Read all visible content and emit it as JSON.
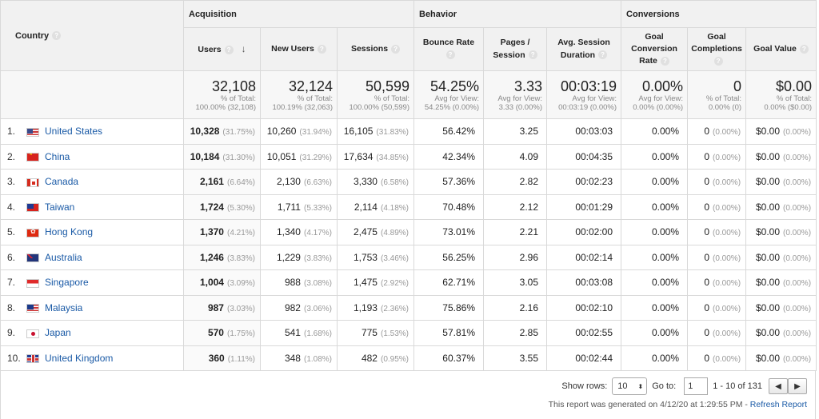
{
  "headers": {
    "country": "Country",
    "acquisition": "Acquisition",
    "behavior": "Behavior",
    "conversions": "Conversions",
    "users": "Users",
    "new_users": "New Users",
    "sessions": "Sessions",
    "bounce_rate": "Bounce Rate",
    "pages_l1": "Pages /",
    "pages_l2": "Session",
    "avg_l1": "Avg. Session",
    "avg_l2": "Duration",
    "gcr_l1": "Goal",
    "gcr_l2": "Conversion",
    "gcr_l3": "Rate",
    "gc_l1": "Goal",
    "gc_l2": "Completions",
    "goal_value": "Goal Value",
    "help_glyph": "?",
    "sort_glyph": "↓"
  },
  "totals": {
    "users": {
      "big": "32,108",
      "s1": "% of Total:",
      "s2": "100.00% (32,108)"
    },
    "new_users": {
      "big": "32,124",
      "s1": "% of Total:",
      "s2": "100.19% (32,063)"
    },
    "sessions": {
      "big": "50,599",
      "s1": "% of Total:",
      "s2": "100.00% (50,599)"
    },
    "bounce_rate": {
      "big": "54.25%",
      "s1": "Avg for View:",
      "s2": "54.25% (0.00%)"
    },
    "pages": {
      "big": "3.33",
      "s1": "Avg for View:",
      "s2": "3.33 (0.00%)"
    },
    "duration": {
      "big": "00:03:19",
      "s1": "Avg for View:",
      "s2": "00:03:19 (0.00%)"
    },
    "gcr": {
      "big": "0.00%",
      "s1": "Avg for View:",
      "s2": "0.00% (0.00%)"
    },
    "gc": {
      "big": "0",
      "s1": "% of Total:",
      "s2": "0.00% (0)"
    },
    "gv": {
      "big": "$0.00",
      "s1": "% of Total:",
      "s2": "0.00% ($0.00)"
    }
  },
  "rows": [
    {
      "n": "1.",
      "country": "United States",
      "users": "10,328",
      "users_p": "(31.75%)",
      "new": "10,260",
      "new_p": "(31.94%)",
      "sess": "16,105",
      "sess_p": "(31.83%)",
      "br": "56.42%",
      "pps": "3.25",
      "dur": "00:03:03",
      "gcr": "0.00%",
      "gc": "0",
      "gc_p": "(0.00%)",
      "gv": "$0.00",
      "gv_p": "(0.00%)"
    },
    {
      "n": "2.",
      "country": "China",
      "users": "10,184",
      "users_p": "(31.30%)",
      "new": "10,051",
      "new_p": "(31.29%)",
      "sess": "17,634",
      "sess_p": "(34.85%)",
      "br": "42.34%",
      "pps": "4.09",
      "dur": "00:04:35",
      "gcr": "0.00%",
      "gc": "0",
      "gc_p": "(0.00%)",
      "gv": "$0.00",
      "gv_p": "(0.00%)"
    },
    {
      "n": "3.",
      "country": "Canada",
      "users": "2,161",
      "users_p": "(6.64%)",
      "new": "2,130",
      "new_p": "(6.63%)",
      "sess": "3,330",
      "sess_p": "(6.58%)",
      "br": "57.36%",
      "pps": "2.82",
      "dur": "00:02:23",
      "gcr": "0.00%",
      "gc": "0",
      "gc_p": "(0.00%)",
      "gv": "$0.00",
      "gv_p": "(0.00%)"
    },
    {
      "n": "4.",
      "country": "Taiwan",
      "users": "1,724",
      "users_p": "(5.30%)",
      "new": "1,711",
      "new_p": "(5.33%)",
      "sess": "2,114",
      "sess_p": "(4.18%)",
      "br": "70.48%",
      "pps": "2.12",
      "dur": "00:01:29",
      "gcr": "0.00%",
      "gc": "0",
      "gc_p": "(0.00%)",
      "gv": "$0.00",
      "gv_p": "(0.00%)"
    },
    {
      "n": "5.",
      "country": "Hong Kong",
      "users": "1,370",
      "users_p": "(4.21%)",
      "new": "1,340",
      "new_p": "(4.17%)",
      "sess": "2,475",
      "sess_p": "(4.89%)",
      "br": "73.01%",
      "pps": "2.21",
      "dur": "00:02:00",
      "gcr": "0.00%",
      "gc": "0",
      "gc_p": "(0.00%)",
      "gv": "$0.00",
      "gv_p": "(0.00%)"
    },
    {
      "n": "6.",
      "country": "Australia",
      "users": "1,246",
      "users_p": "(3.83%)",
      "new": "1,229",
      "new_p": "(3.83%)",
      "sess": "1,753",
      "sess_p": "(3.46%)",
      "br": "56.25%",
      "pps": "2.96",
      "dur": "00:02:14",
      "gcr": "0.00%",
      "gc": "0",
      "gc_p": "(0.00%)",
      "gv": "$0.00",
      "gv_p": "(0.00%)"
    },
    {
      "n": "7.",
      "country": "Singapore",
      "users": "1,004",
      "users_p": "(3.09%)",
      "new": "988",
      "new_p": "(3.08%)",
      "sess": "1,475",
      "sess_p": "(2.92%)",
      "br": "62.71%",
      "pps": "3.05",
      "dur": "00:03:08",
      "gcr": "0.00%",
      "gc": "0",
      "gc_p": "(0.00%)",
      "gv": "$0.00",
      "gv_p": "(0.00%)"
    },
    {
      "n": "8.",
      "country": "Malaysia",
      "users": "987",
      "users_p": "(3.03%)",
      "new": "982",
      "new_p": "(3.06%)",
      "sess": "1,193",
      "sess_p": "(2.36%)",
      "br": "75.86%",
      "pps": "2.16",
      "dur": "00:02:10",
      "gcr": "0.00%",
      "gc": "0",
      "gc_p": "(0.00%)",
      "gv": "$0.00",
      "gv_p": "(0.00%)"
    },
    {
      "n": "9.",
      "country": "Japan",
      "users": "570",
      "users_p": "(1.75%)",
      "new": "541",
      "new_p": "(1.68%)",
      "sess": "775",
      "sess_p": "(1.53%)",
      "br": "57.81%",
      "pps": "2.85",
      "dur": "00:02:55",
      "gcr": "0.00%",
      "gc": "0",
      "gc_p": "(0.00%)",
      "gv": "$0.00",
      "gv_p": "(0.00%)"
    },
    {
      "n": "10.",
      "country": "United Kingdom",
      "users": "360",
      "users_p": "(1.11%)",
      "new": "348",
      "new_p": "(1.08%)",
      "sess": "482",
      "sess_p": "(0.95%)",
      "br": "60.37%",
      "pps": "3.55",
      "dur": "00:02:44",
      "gcr": "0.00%",
      "gc": "0",
      "gc_p": "(0.00%)",
      "gv": "$0.00",
      "gv_p": "(0.00%)"
    }
  ],
  "footer": {
    "show_rows_label": "Show rows:",
    "show_rows_value": "10",
    "goto_label": "Go to:",
    "goto_value": "1",
    "range": "1 - 10 of 131",
    "prev_glyph": "◀",
    "next_glyph": "▶",
    "generated": "This report was generated on 4/12/20 at 1:29:55 PM - ",
    "refresh": "Refresh Report"
  }
}
